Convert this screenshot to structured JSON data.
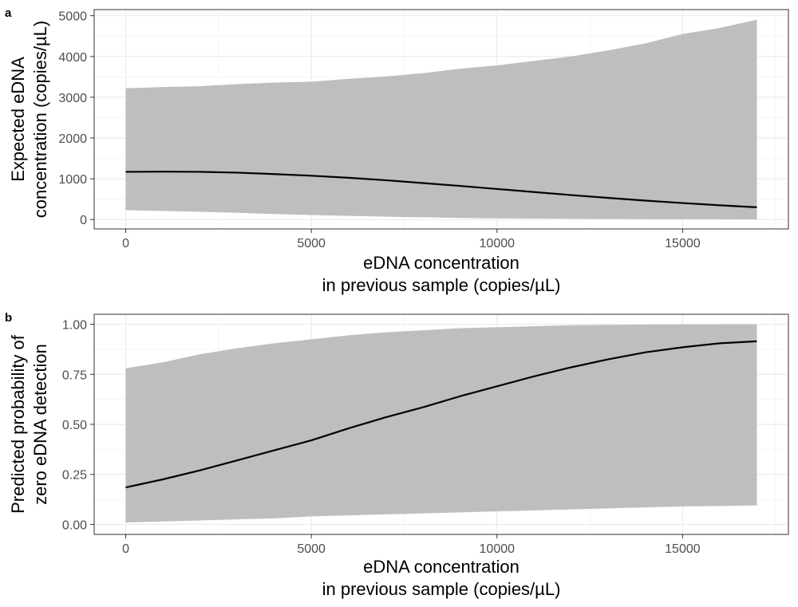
{
  "colors": {
    "band": "#bebebe",
    "line": "#000000",
    "grid_major": "#ebebeb",
    "grid_minor": "#f5f5f5",
    "panel_border": "#333333",
    "background": "#ffffff"
  },
  "chart_data": [
    {
      "type": "line",
      "panel_tag": "a",
      "title": "",
      "xlabel": "eDNA concentration\nin previous sample (copies/µL)",
      "ylabel": "Expected eDNA\nconcentration (copies/µL)",
      "xlim": [
        -850,
        17850
      ],
      "ylim": [
        -230,
        5150
      ],
      "x_ticks": [
        0,
        5000,
        10000,
        15000
      ],
      "y_ticks": [
        0,
        1000,
        2000,
        3000,
        4000,
        5000
      ],
      "x_tick_labels": [
        "0",
        "5000",
        "10000",
        "15000"
      ],
      "y_tick_labels": [
        "0",
        "1000",
        "2000",
        "3000",
        "4000",
        "5000"
      ],
      "grid": true,
      "legend": "none",
      "series": [
        {
          "role": "fit",
          "x": [
            0,
            1000,
            2000,
            3000,
            4000,
            5000,
            6000,
            7000,
            8000,
            9000,
            10000,
            11000,
            12000,
            13000,
            14000,
            15000,
            16000,
            17000
          ],
          "y": [
            1170,
            1175,
            1170,
            1150,
            1115,
            1075,
            1025,
            965,
            895,
            825,
            750,
            675,
            600,
            530,
            465,
            405,
            350,
            300
          ],
          "lower": [
            230,
            210,
            190,
            165,
            135,
            110,
            90,
            70,
            55,
            40,
            30,
            25,
            20,
            15,
            12,
            10,
            8,
            5
          ],
          "upper": [
            3220,
            3250,
            3270,
            3320,
            3360,
            3380,
            3450,
            3510,
            3590,
            3700,
            3780,
            3890,
            4000,
            4150,
            4320,
            4550,
            4700,
            4900
          ]
        }
      ]
    },
    {
      "type": "line",
      "panel_tag": "b",
      "title": "",
      "xlabel": "eDNA concentration\nin previous sample (copies/µL)",
      "ylabel": "Predicted probability of\nzero eDNA detection",
      "xlim": [
        -850,
        17850
      ],
      "ylim": [
        -0.05,
        1.05
      ],
      "x_ticks": [
        0,
        5000,
        10000,
        15000
      ],
      "y_ticks": [
        0,
        0.25,
        0.5,
        0.75,
        1
      ],
      "x_tick_labels": [
        "0",
        "5000",
        "10000",
        "15000"
      ],
      "y_tick_labels": [
        "0.00",
        "0.25",
        "0.50",
        "0.75",
        "1.00"
      ],
      "grid": true,
      "legend": "none",
      "series": [
        {
          "role": "fit",
          "x": [
            0,
            1000,
            2000,
            3000,
            4000,
            5000,
            6000,
            7000,
            8000,
            9000,
            10000,
            11000,
            12000,
            13000,
            14000,
            15000,
            16000,
            17000
          ],
          "y": [
            0.185,
            0.225,
            0.27,
            0.32,
            0.37,
            0.42,
            0.48,
            0.535,
            0.585,
            0.64,
            0.69,
            0.74,
            0.785,
            0.825,
            0.86,
            0.885,
            0.905,
            0.915
          ],
          "lower": [
            0.01,
            0.015,
            0.02,
            0.025,
            0.03,
            0.04,
            0.045,
            0.05,
            0.055,
            0.06,
            0.065,
            0.07,
            0.075,
            0.08,
            0.085,
            0.09,
            0.092,
            0.095
          ],
          "upper": [
            0.78,
            0.81,
            0.85,
            0.88,
            0.905,
            0.925,
            0.945,
            0.96,
            0.97,
            0.98,
            0.985,
            0.99,
            0.995,
            0.997,
            0.998,
            0.999,
            1.0,
            1.0
          ]
        }
      ]
    }
  ]
}
